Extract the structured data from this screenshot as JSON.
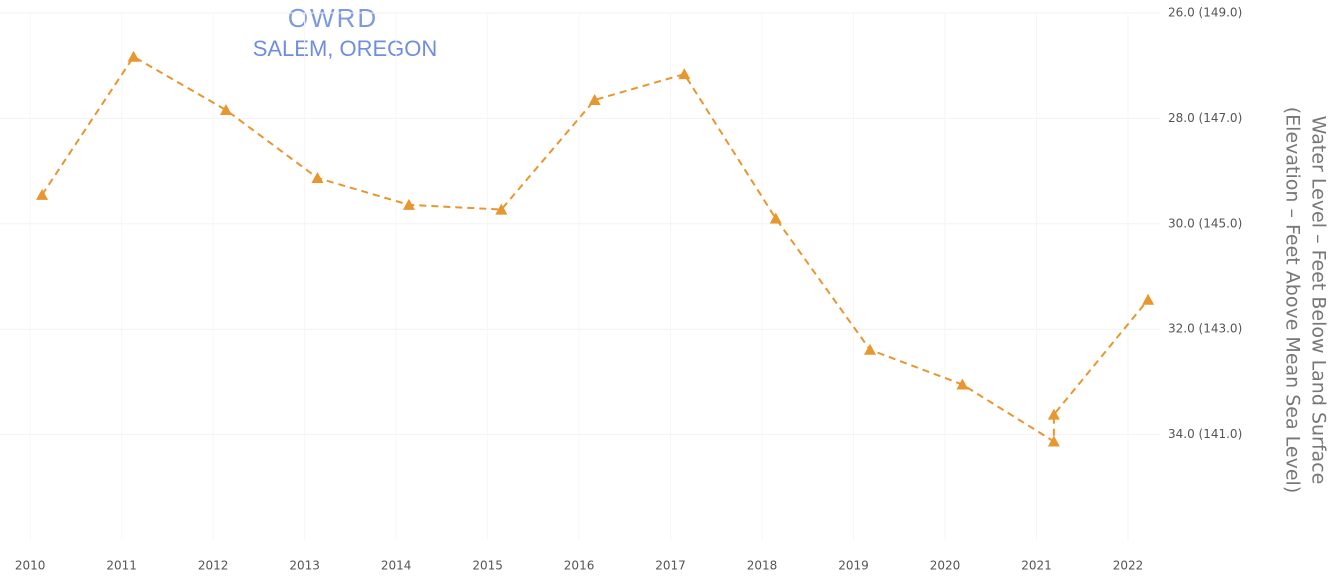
{
  "chart_data": {
    "type": "line",
    "annotations": [
      "OWRD",
      "SALEM, OREGON"
    ],
    "y_axis_label": [
      "Water Level – Feet Below Land Surface",
      "(Elevation – Feet Above Mean Sea Level)"
    ],
    "x": [
      2010.13,
      2011.13,
      2012.14,
      2013.14,
      2014.14,
      2015.15,
      2016.17,
      2017.15,
      2018.15,
      2019.18,
      2020.19,
      2021.19,
      2021.19,
      2022.22
    ],
    "series": [
      {
        "color": "#e8962e",
        "values": [
          29.45,
          26.83,
          27.84,
          29.13,
          29.64,
          29.73,
          27.65,
          27.16,
          29.9,
          32.39,
          33.05,
          34.13,
          33.62,
          31.44
        ]
      }
    ],
    "xlim": [
      2009.67,
      2022.35
    ],
    "xticks": [
      2010,
      2011,
      2012,
      2013,
      2014,
      2015,
      2016,
      2017,
      2018,
      2019,
      2020,
      2021,
      2022
    ],
    "ylim": [
      26,
      36
    ],
    "y_inverted": true,
    "yticks": [
      {
        "value": 26,
        "label": "26.0 (149.0)"
      },
      {
        "value": 28,
        "label": "28.0 (147.0)"
      },
      {
        "value": 30,
        "label": "30.0 (145.0)"
      },
      {
        "value": 32,
        "label": "32.0 (143.0)"
      },
      {
        "value": 34,
        "label": "34.0 (141.0)"
      }
    ],
    "grid": true,
    "line_style": "dashed",
    "marker": "triangle"
  }
}
